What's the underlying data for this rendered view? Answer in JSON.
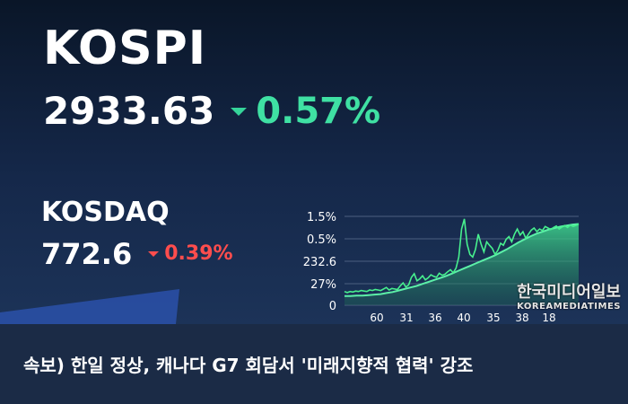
{
  "kospi": {
    "name": "KOSPI",
    "value": "2933.63",
    "change": "0.57%",
    "color": "#3fe0a3"
  },
  "kosdaq": {
    "name": "KOSDAQ",
    "value": "772.6",
    "change": "0.39%",
    "color": "#ff4d4d"
  },
  "chart_data": {
    "type": "line",
    "y_tick_labels": [
      "1.5%",
      "0.5%",
      "232.6",
      "27%",
      "0"
    ],
    "x_tick_labels": [
      "60",
      "31",
      "36",
      "40",
      "35",
      "38",
      "18"
    ],
    "series": [
      {
        "values": [
          27,
          25,
          27,
          26,
          28,
          27,
          29,
          28,
          27,
          30,
          29,
          31,
          30,
          29,
          32,
          35,
          30,
          33,
          32,
          31,
          38,
          44,
          36,
          40,
          55,
          62,
          48,
          52,
          58,
          50,
          54,
          60,
          57,
          55,
          63,
          59,
          61,
          66,
          70,
          64,
          73,
          95,
          150,
          170,
          120,
          100,
          95,
          110,
          140,
          120,
          105,
          125,
          118,
          112,
          100,
          108,
          122,
          118,
          130,
          135,
          125,
          140,
          150,
          138,
          145,
          132,
          140,
          148,
          152,
          145,
          150,
          147,
          155,
          152,
          149,
          153,
          156,
          150,
          154,
          157,
          153,
          158,
          155,
          157,
          160
        ]
      },
      {
        "values": [
          18,
          18,
          19,
          19,
          20,
          21,
          22,
          24,
          26,
          29,
          32,
          35,
          38,
          42,
          46,
          50,
          54,
          58,
          63,
          68,
          73,
          78,
          83,
          88,
          93,
          98,
          104,
          110,
          117,
          124,
          130,
          136,
          141,
          145,
          149,
          152,
          155,
          157,
          159,
          160
        ]
      }
    ]
  },
  "caption": {
    "text": "속보) 한일 정상, 캐나다 G7 회담서 '미래지향적 협력' 강조"
  },
  "watermark": {
    "korean": "한국미디어일보",
    "english": "KOREAMEDIATIMES"
  }
}
